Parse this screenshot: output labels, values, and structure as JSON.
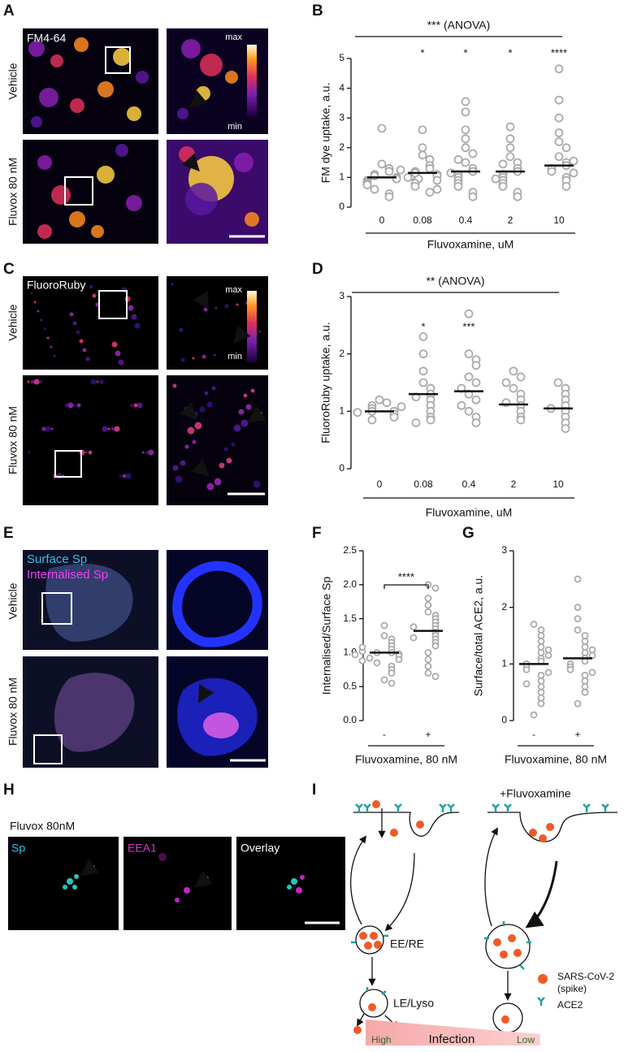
{
  "chart_data": [
    {
      "type": "dot",
      "panel": "B",
      "categories": [
        "0",
        "0.08",
        "0.4",
        "2",
        "10"
      ],
      "points": [
        [
          2.65,
          1.45,
          1.3,
          1.2,
          1.1,
          1.05,
          1.0,
          0.95,
          0.9,
          0.85,
          0.8,
          0.75,
          0.6,
          0.45,
          0.35,
          1.05,
          0.95
        ],
        [
          2.6,
          2.0,
          1.75,
          1.6,
          1.4,
          1.3,
          1.2,
          1.15,
          1.1,
          1.05,
          1.0,
          0.9,
          0.8,
          0.7,
          0.5,
          1.25,
          0.6
        ],
        [
          3.55,
          3.2,
          2.6,
          2.3,
          2.0,
          1.8,
          1.5,
          1.3,
          1.2,
          1.1,
          1.0,
          0.9,
          0.8,
          0.7,
          0.5,
          0.35,
          1.6,
          1.15
        ],
        [
          2.7,
          2.3,
          2.0,
          1.7,
          1.5,
          1.3,
          1.2,
          1.1,
          1.0,
          0.9,
          0.8,
          0.7,
          0.5,
          0.35,
          1.45,
          0.95
        ],
        [
          4.65,
          3.6,
          3.0,
          2.5,
          2.2,
          2.0,
          1.7,
          1.5,
          1.4,
          1.3,
          1.2,
          1.0,
          0.9,
          0.7,
          1.55,
          1.15
        ]
      ],
      "means": [
        1.0,
        1.15,
        1.2,
        1.2,
        1.4
      ],
      "significance": [
        null,
        "*",
        "*",
        "*",
        "****"
      ],
      "anova_label": "*** (ANOVA)",
      "ylabel": "FM dye uptake, a.u.",
      "xlabel": "Fluvoxamine, uM",
      "ylim": [
        0,
        5
      ],
      "yticks": [
        0,
        1,
        2,
        3,
        4,
        5
      ],
      "color": "#aaaaaa"
    },
    {
      "type": "dot",
      "panel": "D",
      "categories": [
        "0",
        "0.08",
        "0.4",
        "2",
        "10"
      ],
      "points": [
        [
          1.2,
          1.15,
          1.1,
          1.05,
          1.0,
          1.0,
          0.95,
          0.9,
          0.85,
          1.08,
          0.98
        ],
        [
          2.3,
          2.0,
          1.7,
          1.5,
          1.4,
          1.3,
          1.2,
          1.1,
          1.0,
          0.9,
          0.85,
          0.8,
          1.25
        ],
        [
          2.7,
          2.0,
          1.9,
          1.8,
          1.6,
          1.5,
          1.3,
          1.2,
          1.0,
          0.9,
          0.8,
          1.4,
          1.1
        ],
        [
          1.7,
          1.6,
          1.4,
          1.3,
          1.2,
          1.1,
          1.0,
          0.9,
          0.85,
          1.15,
          1.5
        ],
        [
          1.5,
          1.4,
          1.3,
          1.2,
          1.1,
          1.0,
          0.9,
          0.8,
          0.7,
          1.05
        ]
      ],
      "means": [
        1.0,
        1.3,
        1.35,
        1.12,
        1.05
      ],
      "significance": [
        null,
        "*",
        "***",
        null,
        null
      ],
      "anova_label": "** (ANOVA)",
      "ylabel": "FluoroRuby uptake, a.u.",
      "xlabel": "Fluvoxamine, uM",
      "ylim": [
        0,
        3
      ],
      "yticks": [
        0,
        1,
        2,
        3
      ],
      "color": "#aaaaaa"
    },
    {
      "type": "dot",
      "panel": "F",
      "categories": [
        "-",
        "+"
      ],
      "points": [
        [
          1.4,
          1.25,
          1.2,
          1.15,
          1.1,
          1.05,
          1.0,
          1.0,
          0.98,
          0.95,
          0.92,
          0.9,
          0.85,
          0.8,
          0.75,
          0.7,
          0.6,
          0.55,
          1.02,
          0.97,
          1.08,
          0.88
        ],
        [
          2.0,
          1.95,
          1.8,
          1.7,
          1.6,
          1.55,
          1.5,
          1.45,
          1.4,
          1.35,
          1.3,
          1.25,
          1.2,
          1.15,
          1.1,
          1.0,
          0.9,
          0.8,
          0.7,
          0.65,
          1.38,
          1.22
        ]
      ],
      "means": [
        1.0,
        1.32
      ],
      "comparison_label": "****",
      "ylabel": "Internalised/Surface Sp",
      "xlabel": "Fluvoxamine, 80 nM",
      "ylim": [
        0,
        2.5
      ],
      "yticks": [
        {
          "value": 0,
          "label": "0.0"
        },
        {
          "value": 0.5,
          "label": "0.5"
        },
        {
          "value": 1,
          "label": "1.0"
        },
        {
          "value": 1.5,
          "label": "1.5"
        },
        {
          "value": 2,
          "label": "2.0"
        },
        {
          "value": 2.5,
          "label": "2.5"
        }
      ],
      "color": "#aaaaaa"
    },
    {
      "type": "dot",
      "panel": "G",
      "categories": [
        "-",
        "+"
      ],
      "points": [
        [
          1.7,
          1.6,
          1.5,
          1.4,
          1.3,
          1.2,
          1.1,
          1.05,
          1.0,
          0.95,
          0.9,
          0.8,
          0.7,
          0.6,
          0.5,
          0.4,
          0.3,
          0.1,
          1.15,
          0.85,
          1.25,
          0.65
        ],
        [
          2.5,
          2.0,
          1.8,
          1.6,
          1.5,
          1.4,
          1.3,
          1.2,
          1.1,
          1.05,
          1.0,
          0.95,
          0.9,
          0.8,
          0.7,
          0.6,
          0.5,
          0.3,
          1.15,
          0.85,
          1.25
        ]
      ],
      "means": [
        1.0,
        1.1
      ],
      "ylabel": "Surface/total ACE2, a.u.",
      "xlabel": "Fluvoxamine, 80 nM",
      "ylim": [
        0,
        3
      ],
      "yticks": [
        0,
        1,
        2,
        3
      ],
      "color": "#aaaaaa"
    }
  ],
  "figure": {
    "panel_labels": [
      "A",
      "B",
      "C",
      "D",
      "E",
      "F",
      "G",
      "H",
      "I"
    ],
    "A": {
      "stain": "FM4-64",
      "rows": [
        "Vehicle",
        "Fluvox 80 nM"
      ],
      "scale": [
        "max",
        "min"
      ]
    },
    "C": {
      "stain": "FluoroRuby",
      "rows": [
        "Vehicle",
        "Fluvox 80 nM"
      ],
      "scale": [
        "max",
        "min"
      ]
    },
    "E": {
      "stains": [
        "Surface Sp",
        "Internalised Sp"
      ],
      "rows": [
        "Vehicle",
        "Fluvox 80 nM"
      ]
    },
    "H": {
      "condition": "Fluvox 80nM",
      "channels": [
        "Sp",
        "EEA1",
        "Overlay"
      ]
    },
    "I": {
      "treatment": "+Fluvoxamine",
      "compartments": [
        "EE/RE",
        "LE/Lyso"
      ],
      "legend": [
        "SARS-CoV-2",
        "(spike)",
        "ACE2"
      ],
      "infection": [
        "High",
        "Infection",
        "Low"
      ]
    }
  }
}
